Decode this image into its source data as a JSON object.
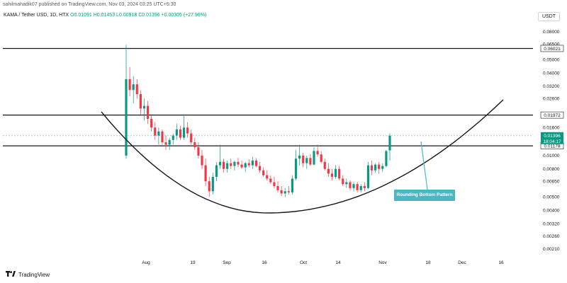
{
  "header": {
    "publisher_line": "sahilmahadik07 published on TradingView.com, Nov 03, 2024 03:25 UTC+5:30"
  },
  "legend": {
    "symbol": "KAMA / Tether USD, 1D, HTX",
    "open": "O0.01091",
    "high": "H0.01453",
    "low": "L0.00918",
    "close": "C0.01396",
    "change": "+0.00305 (+27.96%)"
  },
  "currency": "USDT",
  "price_axis": {
    "ticks": [
      "0.08000",
      "0.06500",
      "0.05000",
      "0.04000",
      "0.03200",
      "0.02600",
      "0.01600",
      "0.01000",
      "0.00800",
      "0.00650",
      "0.00500",
      "0.00400",
      "0.00320",
      "0.00260",
      "0.00210"
    ]
  },
  "levels": {
    "resistance_top": "0.06021",
    "resistance_mid": "0.01972",
    "support": "0.01178"
  },
  "last_price": {
    "price": "0.01396",
    "countdown": "18:04:17"
  },
  "date_axis": {
    "ticks": [
      "Aug",
      "19",
      "Sep",
      "16",
      "Oct",
      "14",
      "Nov",
      "18",
      "Dec",
      "16"
    ]
  },
  "annotation": {
    "label": "Rounding Bottom Pattern"
  },
  "footer": {
    "brand": "TradingView"
  },
  "colors": {
    "up": "#089981",
    "down": "#f23645",
    "callout": "#4db6c5",
    "last_price": "#089981"
  },
  "chart_data": {
    "type": "candlestick",
    "title": "KAMA / Tether USD, 1D, HTX",
    "y_scale": "log",
    "ylim": [
      0.0019,
      0.095
    ],
    "x_categories": [
      "Aug",
      "19",
      "Sep",
      "16",
      "Oct",
      "14",
      "Nov",
      "18",
      "Dec",
      "16"
    ],
    "horizontal_levels": [
      0.06021,
      0.01972,
      0.01178
    ],
    "candles": [
      {
        "o": 0.01,
        "h": 0.064,
        "l": 0.0095,
        "c": 0.036
      },
      {
        "o": 0.036,
        "h": 0.044,
        "l": 0.027,
        "c": 0.03
      },
      {
        "o": 0.03,
        "h": 0.038,
        "l": 0.024,
        "c": 0.033
      },
      {
        "o": 0.033,
        "h": 0.036,
        "l": 0.026,
        "c": 0.028
      },
      {
        "o": 0.028,
        "h": 0.03,
        "l": 0.02,
        "c": 0.022
      },
      {
        "o": 0.022,
        "h": 0.026,
        "l": 0.018,
        "c": 0.023
      },
      {
        "o": 0.023,
        "h": 0.025,
        "l": 0.017,
        "c": 0.0185
      },
      {
        "o": 0.0185,
        "h": 0.02,
        "l": 0.015,
        "c": 0.016
      },
      {
        "o": 0.016,
        "h": 0.0175,
        "l": 0.013,
        "c": 0.014
      },
      {
        "o": 0.014,
        "h": 0.016,
        "l": 0.012,
        "c": 0.015
      },
      {
        "o": 0.015,
        "h": 0.0155,
        "l": 0.012,
        "c": 0.0125
      },
      {
        "o": 0.0125,
        "h": 0.014,
        "l": 0.011,
        "c": 0.012
      },
      {
        "o": 0.012,
        "h": 0.0135,
        "l": 0.011,
        "c": 0.013
      },
      {
        "o": 0.013,
        "h": 0.0145,
        "l": 0.012,
        "c": 0.014
      },
      {
        "o": 0.014,
        "h": 0.017,
        "l": 0.013,
        "c": 0.0155
      },
      {
        "o": 0.0155,
        "h": 0.0165,
        "l": 0.013,
        "c": 0.0135
      },
      {
        "o": 0.0135,
        "h": 0.02,
        "l": 0.013,
        "c": 0.016
      },
      {
        "o": 0.016,
        "h": 0.0175,
        "l": 0.0135,
        "c": 0.0145
      },
      {
        "o": 0.0145,
        "h": 0.0155,
        "l": 0.012,
        "c": 0.0125
      },
      {
        "o": 0.0125,
        "h": 0.0135,
        "l": 0.011,
        "c": 0.0115
      },
      {
        "o": 0.0115,
        "h": 0.0125,
        "l": 0.0095,
        "c": 0.01
      },
      {
        "o": 0.01,
        "h": 0.011,
        "l": 0.008,
        "c": 0.0085
      },
      {
        "o": 0.0085,
        "h": 0.0095,
        "l": 0.006,
        "c": 0.0065
      },
      {
        "o": 0.0065,
        "h": 0.007,
        "l": 0.005,
        "c": 0.0055
      },
      {
        "o": 0.0055,
        "h": 0.0075,
        "l": 0.0052,
        "c": 0.007
      },
      {
        "o": 0.007,
        "h": 0.009,
        "l": 0.0065,
        "c": 0.0085
      },
      {
        "o": 0.0085,
        "h": 0.012,
        "l": 0.008,
        "c": 0.009
      },
      {
        "o": 0.009,
        "h": 0.0095,
        "l": 0.0075,
        "c": 0.008
      },
      {
        "o": 0.008,
        "h": 0.0092,
        "l": 0.0075,
        "c": 0.0088
      },
      {
        "o": 0.0088,
        "h": 0.0095,
        "l": 0.008,
        "c": 0.0084
      },
      {
        "o": 0.0084,
        "h": 0.0092,
        "l": 0.0078,
        "c": 0.009
      },
      {
        "o": 0.009,
        "h": 0.0096,
        "l": 0.0082,
        "c": 0.0086
      },
      {
        "o": 0.0086,
        "h": 0.0092,
        "l": 0.008,
        "c": 0.0082
      },
      {
        "o": 0.0082,
        "h": 0.009,
        "l": 0.0076,
        "c": 0.0088
      },
      {
        "o": 0.0088,
        "h": 0.0094,
        "l": 0.0082,
        "c": 0.0085
      },
      {
        "o": 0.0085,
        "h": 0.0098,
        "l": 0.008,
        "c": 0.0092
      },
      {
        "o": 0.0092,
        "h": 0.0096,
        "l": 0.0082,
        "c": 0.0084
      },
      {
        "o": 0.0084,
        "h": 0.009,
        "l": 0.0075,
        "c": 0.0078
      },
      {
        "o": 0.0078,
        "h": 0.0082,
        "l": 0.007,
        "c": 0.0072
      },
      {
        "o": 0.0072,
        "h": 0.0078,
        "l": 0.0066,
        "c": 0.0068
      },
      {
        "o": 0.0068,
        "h": 0.0072,
        "l": 0.0062,
        "c": 0.0064
      },
      {
        "o": 0.0064,
        "h": 0.007,
        "l": 0.0058,
        "c": 0.006
      },
      {
        "o": 0.006,
        "h": 0.0065,
        "l": 0.0054,
        "c": 0.0056
      },
      {
        "o": 0.0056,
        "h": 0.006,
        "l": 0.0051,
        "c": 0.0053
      },
      {
        "o": 0.0053,
        "h": 0.0058,
        "l": 0.005,
        "c": 0.0055
      },
      {
        "o": 0.0055,
        "h": 0.006,
        "l": 0.0052,
        "c": 0.0054
      },
      {
        "o": 0.0054,
        "h": 0.0072,
        "l": 0.0052,
        "c": 0.0068
      },
      {
        "o": 0.0068,
        "h": 0.011,
        "l": 0.0066,
        "c": 0.0095
      },
      {
        "o": 0.0095,
        "h": 0.012,
        "l": 0.0085,
        "c": 0.01
      },
      {
        "o": 0.01,
        "h": 0.0105,
        "l": 0.0082,
        "c": 0.0088
      },
      {
        "o": 0.0088,
        "h": 0.01,
        "l": 0.008,
        "c": 0.0096
      },
      {
        "o": 0.0096,
        "h": 0.0102,
        "l": 0.0084,
        "c": 0.0086
      },
      {
        "o": 0.0086,
        "h": 0.0115,
        "l": 0.0085,
        "c": 0.0108
      },
      {
        "o": 0.0108,
        "h": 0.012,
        "l": 0.0098,
        "c": 0.0102
      },
      {
        "o": 0.0102,
        "h": 0.0108,
        "l": 0.0088,
        "c": 0.009
      },
      {
        "o": 0.009,
        "h": 0.0095,
        "l": 0.0078,
        "c": 0.008
      },
      {
        "o": 0.008,
        "h": 0.0088,
        "l": 0.007,
        "c": 0.0074
      },
      {
        "o": 0.0074,
        "h": 0.008,
        "l": 0.0066,
        "c": 0.007
      },
      {
        "o": 0.007,
        "h": 0.0085,
        "l": 0.0068,
        "c": 0.008
      },
      {
        "o": 0.008,
        "h": 0.0084,
        "l": 0.0066,
        "c": 0.0068
      },
      {
        "o": 0.0068,
        "h": 0.0072,
        "l": 0.006,
        "c": 0.0062
      },
      {
        "o": 0.0062,
        "h": 0.0068,
        "l": 0.0058,
        "c": 0.0064
      },
      {
        "o": 0.0064,
        "h": 0.0066,
        "l": 0.0056,
        "c": 0.0058
      },
      {
        "o": 0.0058,
        "h": 0.0064,
        "l": 0.0055,
        "c": 0.0062
      },
      {
        "o": 0.0062,
        "h": 0.0064,
        "l": 0.0054,
        "c": 0.0056
      },
      {
        "o": 0.0056,
        "h": 0.0062,
        "l": 0.0054,
        "c": 0.006
      },
      {
        "o": 0.006,
        "h": 0.0064,
        "l": 0.0055,
        "c": 0.0058
      },
      {
        "o": 0.0058,
        "h": 0.009,
        "l": 0.0057,
        "c": 0.0085
      },
      {
        "o": 0.0085,
        "h": 0.0092,
        "l": 0.0072,
        "c": 0.0078
      },
      {
        "o": 0.0078,
        "h": 0.0088,
        "l": 0.0075,
        "c": 0.0086
      },
      {
        "o": 0.0086,
        "h": 0.009,
        "l": 0.0074,
        "c": 0.008
      },
      {
        "o": 0.008,
        "h": 0.0088,
        "l": 0.0076,
        "c": 0.0084
      },
      {
        "o": 0.0084,
        "h": 0.011,
        "l": 0.0082,
        "c": 0.0108
      },
      {
        "o": 0.01091,
        "h": 0.01453,
        "l": 0.00918,
        "c": 0.01396
      }
    ],
    "trendline": {
      "type": "rounding_bottom_curve",
      "label": "Rounding Bottom Pattern"
    }
  }
}
